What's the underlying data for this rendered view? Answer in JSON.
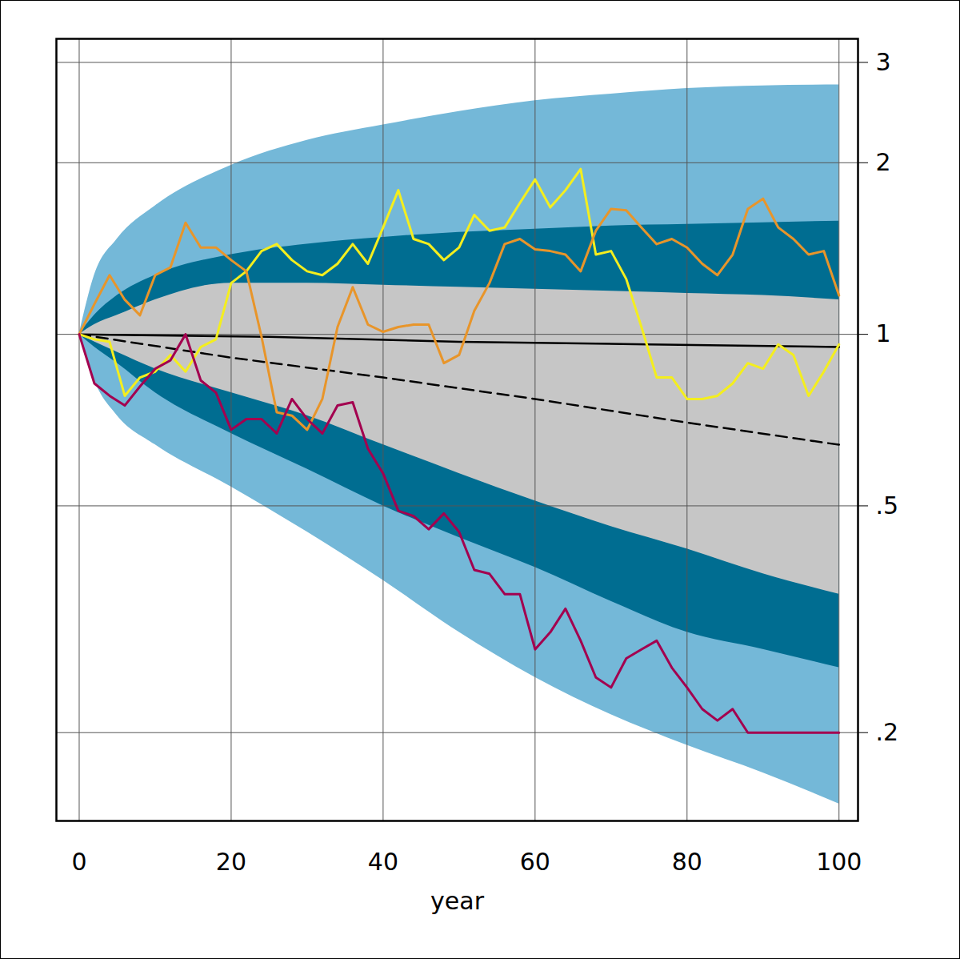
{
  "chart_data": {
    "type": "line",
    "xlabel": "year",
    "xlim": [
      -3,
      102.5
    ],
    "xticks": [
      0,
      20,
      40,
      60,
      80,
      100
    ],
    "ylim": [
      0.14,
      3.3
    ],
    "yticks": [
      {
        "value": 0.2,
        "label": ".2"
      },
      {
        "value": 0.5,
        "label": ".5"
      },
      1,
      2,
      3
    ],
    "log": "y",
    "grid": true,
    "x": [
      0,
      2,
      4,
      6,
      8,
      10,
      12,
      14,
      16,
      18,
      20,
      22,
      24,
      26,
      28,
      30,
      32,
      34,
      36,
      38,
      40,
      42,
      44,
      46,
      48,
      50,
      52,
      54,
      56,
      58,
      60,
      62,
      64,
      66,
      68,
      70,
      72,
      74,
      76,
      78,
      80,
      82,
      84,
      86,
      88,
      90,
      92,
      94,
      96,
      98,
      100
    ],
    "series": [
      {
        "type": "area",
        "color": "#74b8d8",
        "x": [
          0,
          2,
          5,
          10,
          20,
          30,
          40,
          50,
          60,
          70,
          80,
          90,
          100
        ],
        "lower": [
          1.0,
          0.83,
          0.72,
          0.64,
          0.54,
          0.45,
          0.37,
          0.3,
          0.25,
          0.215,
          0.19,
          0.17,
          0.15
        ],
        "upper": [
          1.0,
          1.27,
          1.47,
          1.68,
          1.98,
          2.19,
          2.33,
          2.46,
          2.57,
          2.64,
          2.7,
          2.73,
          2.74
        ]
      },
      {
        "type": "area",
        "color": "#006d91",
        "x": [
          0,
          2,
          5,
          10,
          20,
          30,
          40,
          50,
          60,
          70,
          80,
          90,
          100
        ],
        "lower": [
          1.0,
          0.95,
          0.89,
          0.79,
          0.67,
          0.58,
          0.5,
          0.44,
          0.39,
          0.34,
          0.3,
          0.28,
          0.26
        ],
        "upper": [
          1.0,
          1.08,
          1.17,
          1.27,
          1.38,
          1.44,
          1.48,
          1.51,
          1.53,
          1.55,
          1.56,
          1.57,
          1.58
        ]
      },
      {
        "type": "area",
        "color": "#c6c6c6",
        "x": [
          0,
          2,
          5,
          10,
          20,
          30,
          40,
          50,
          60,
          70,
          80,
          90,
          100
        ],
        "lower": [
          1.0,
          0.97,
          0.93,
          0.87,
          0.79,
          0.72,
          0.64,
          0.57,
          0.51,
          0.46,
          0.42,
          0.38,
          0.35
        ],
        "upper": [
          1.0,
          1.04,
          1.08,
          1.15,
          1.23,
          1.23,
          1.22,
          1.21,
          1.2,
          1.19,
          1.18,
          1.17,
          1.15
        ]
      },
      {
        "type": "line",
        "color": "#000000",
        "line_style": "solid",
        "x": [
          0,
          25,
          50,
          75,
          100
        ],
        "values": [
          1.0,
          0.99,
          0.97,
          0.96,
          0.95
        ]
      },
      {
        "type": "line",
        "color": "#000000",
        "line_style": "dashed",
        "x": [
          0,
          20,
          40,
          60,
          80,
          100
        ],
        "values": [
          1.0,
          0.91,
          0.84,
          0.77,
          0.7,
          0.64
        ]
      },
      {
        "type": "line",
        "color": "#f4ee1e",
        "line_style": "solid",
        "values": [
          1.0,
          0.98,
          0.97,
          0.78,
          0.84,
          0.86,
          0.92,
          0.86,
          0.95,
          0.98,
          1.23,
          1.29,
          1.4,
          1.44,
          1.35,
          1.29,
          1.27,
          1.33,
          1.44,
          1.33,
          1.54,
          1.79,
          1.47,
          1.44,
          1.35,
          1.42,
          1.62,
          1.52,
          1.54,
          1.7,
          1.87,
          1.67,
          1.79,
          1.95,
          1.38,
          1.4,
          1.25,
          1.03,
          0.84,
          0.84,
          0.77,
          0.77,
          0.78,
          0.82,
          0.89,
          0.87,
          0.96,
          0.92,
          0.78,
          0.86,
          0.96
        ]
      },
      {
        "type": "line",
        "color": "#e8952a",
        "line_style": "solid",
        "values": [
          1.0,
          1.13,
          1.27,
          1.15,
          1.08,
          1.27,
          1.31,
          1.57,
          1.42,
          1.42,
          1.35,
          1.29,
          0.99,
          0.73,
          0.72,
          0.68,
          0.77,
          1.03,
          1.21,
          1.04,
          1.01,
          1.03,
          1.04,
          1.04,
          0.89,
          0.92,
          1.1,
          1.23,
          1.44,
          1.47,
          1.41,
          1.4,
          1.38,
          1.29,
          1.52,
          1.66,
          1.65,
          1.54,
          1.44,
          1.47,
          1.42,
          1.33,
          1.27,
          1.38,
          1.66,
          1.73,
          1.54,
          1.47,
          1.38,
          1.4,
          1.17
        ]
      },
      {
        "type": "line",
        "color": "#a3004f",
        "line_style": "solid",
        "values": [
          1.0,
          0.82,
          0.78,
          0.75,
          0.81,
          0.87,
          0.9,
          1.0,
          0.83,
          0.79,
          0.68,
          0.71,
          0.71,
          0.67,
          0.77,
          0.71,
          0.67,
          0.75,
          0.76,
          0.63,
          0.57,
          0.49,
          0.48,
          0.455,
          0.485,
          0.45,
          0.386,
          0.38,
          0.35,
          0.35,
          0.28,
          0.3,
          0.33,
          0.29,
          0.25,
          0.24,
          0.27,
          0.28,
          0.29,
          0.26,
          0.24,
          0.22,
          0.21,
          0.22,
          0.2,
          0.2,
          0.2,
          0.2,
          0.2,
          0.2,
          0.2
        ]
      }
    ]
  }
}
